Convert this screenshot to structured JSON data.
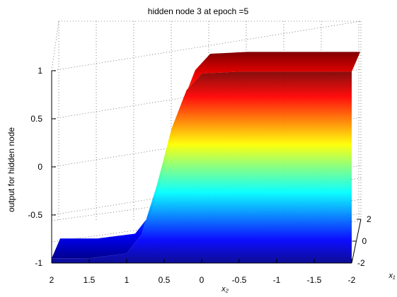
{
  "chart_data": {
    "type": "surface",
    "title": "hidden node 3 at epoch =5",
    "zlabel": "output for hidden node",
    "xlabel": "x₁",
    "ylabel": "x₂",
    "x_ticks": [
      "2",
      "1.5",
      "1",
      "0.5",
      "0",
      "-0.5",
      "-1",
      "-1.5",
      "-2"
    ],
    "x_tick_values": [
      2,
      1.5,
      1,
      0.5,
      0,
      -0.5,
      -1,
      -1.5,
      -2
    ],
    "y_ticks": [
      "2",
      "0",
      "-2"
    ],
    "y_tick_values": [
      2,
      0,
      -2
    ],
    "z_ticks": [
      "1",
      "0.5",
      "0",
      "-0.5",
      "-1"
    ],
    "z_tick_values": [
      1,
      0.5,
      0,
      -0.5,
      -1
    ],
    "xlim": [
      -2,
      2
    ],
    "ylim": [
      -2,
      2
    ],
    "zlim": [
      -1,
      1.35
    ],
    "grid": true,
    "colormap": "jet",
    "surface": {
      "function": "tanh-like sigmoid step along x2",
      "low_plateau": -0.95,
      "high_plateau": 0.99,
      "transition_center_x2": 0.55,
      "samples_x2": [
        2.0,
        1.5,
        1.0,
        0.8,
        0.6,
        0.4,
        0.2,
        0.0,
        -0.5,
        -1.0,
        -1.5,
        -2.0
      ],
      "samples_z": [
        -0.95,
        -0.95,
        -0.9,
        -0.7,
        -0.2,
        0.4,
        0.8,
        0.97,
        0.99,
        0.99,
        0.99,
        0.99
      ]
    }
  }
}
